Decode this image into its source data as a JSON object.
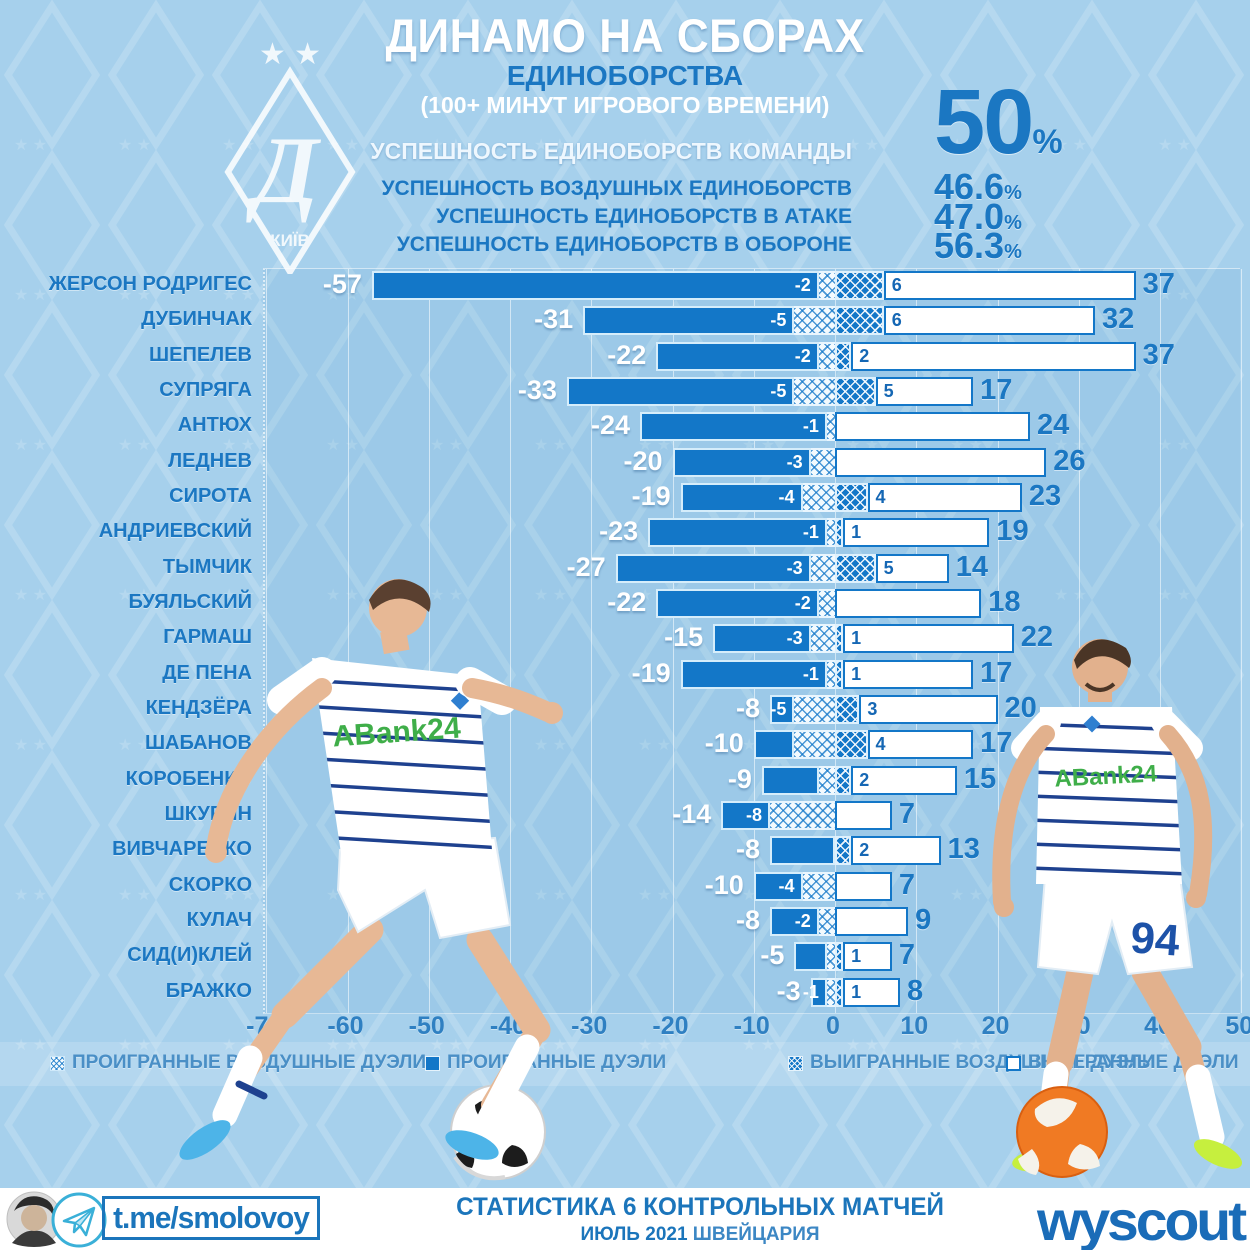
{
  "header": {
    "title": "ДИНАМО НА СБОРАХ",
    "subtitle": "ЕДИНОБОРСТВА",
    "note": "(100+ МИНУТ ИГРОВОГО ВРЕМЕНИ)",
    "stats": [
      {
        "label": "УСПЕШНОСТЬ ЕДИНОБОРСТВ КОМАНДЫ",
        "value": "50",
        "unit": "%"
      },
      {
        "label": "УСПЕШНОСТЬ ВОЗДУШНЫХ ЕДИНОБОРСТВ",
        "value": "46.6",
        "unit": "%"
      },
      {
        "label": "УСПЕШНОСТЬ ЕДИНОБОРСТВ В АТАКЕ",
        "value": "47.0",
        "unit": "%"
      },
      {
        "label": "УСПЕШНОСТЬ ЕДИНОБОРСТВ В ОБОРОНЕ",
        "value": "56.3",
        "unit": "%"
      }
    ]
  },
  "logo": {
    "stars": "★ ★",
    "letter": "Д",
    "city": "КИЇВ"
  },
  "colors": {
    "accent": "#1b77c2",
    "bar": "#1377c8",
    "background": "#a6d0ec",
    "stripe": "#1e418f",
    "sponsor_green": "#3fae49",
    "boot_aqua": "#4db4e8",
    "boot_volt": "#c6ef3e",
    "ball_orange": "#f07a23"
  },
  "chart_data": {
    "type": "bar",
    "orientation": "horizontal-diverging-stacked",
    "title": "ЕДИНОБОРСТВА (100+ МИНУТ ИГРОВОГО ВРЕМЕНИ)",
    "xlim": [
      -70,
      50
    ],
    "x_ticks": [
      -70,
      -60,
      -50,
      -40,
      -30,
      -20,
      -10,
      0,
      10,
      20,
      30,
      40,
      50
    ],
    "grid": true,
    "segments": [
      "lost_total",
      "lost_aerial",
      "won_aerial",
      "won_total"
    ],
    "players": [
      {
        "name": "ЖЕРСОН РОДРИГЕС",
        "lt": -57,
        "la": -2,
        "wa": 6,
        "wt": 37,
        "la_label": true
      },
      {
        "name": "ДУБИНЧАК",
        "lt": -31,
        "la": -5,
        "wa": 6,
        "wt": 32,
        "la_label": true
      },
      {
        "name": "ШЕПЕЛЕВ",
        "lt": -22,
        "la": -2,
        "wa": 2,
        "wt": 37,
        "la_label": true
      },
      {
        "name": "СУПРЯГА",
        "lt": -33,
        "la": -5,
        "wa": 5,
        "wt": 17,
        "la_label": true
      },
      {
        "name": "АНТЮХ",
        "lt": -24,
        "la": -1,
        "wa": 0,
        "wt": 24,
        "la_label": true
      },
      {
        "name": "ЛЕДНЕВ",
        "lt": -20,
        "la": -3,
        "wa": 0,
        "wt": 26,
        "la_label": true
      },
      {
        "name": "СИРОТА",
        "lt": -19,
        "la": -4,
        "wa": 4,
        "wt": 23,
        "la_label": true
      },
      {
        "name": "АНДРИЕВСКИЙ",
        "lt": -23,
        "la": -1,
        "wa": 1,
        "wt": 19,
        "la_label": true
      },
      {
        "name": "ТЫМЧИК",
        "lt": -27,
        "la": -3,
        "wa": 5,
        "wt": 14,
        "la_label": true
      },
      {
        "name": "БУЯЛЬСКИЙ",
        "lt": -22,
        "la": -2,
        "wa": 0,
        "wt": 18,
        "la_label": true
      },
      {
        "name": "ГАРМАШ",
        "lt": -15,
        "la": -3,
        "wa": 1,
        "wt": 22,
        "la_label": true
      },
      {
        "name": "ДЕ ПЕНА",
        "lt": -19,
        "la": -1,
        "wa": 1,
        "wt": 17,
        "la_label": true
      },
      {
        "name": "КЕНДЗЁРА",
        "lt": -8,
        "la": -5,
        "wa": 3,
        "wt": 20,
        "la_label": true
      },
      {
        "name": "ШАБАНОВ",
        "lt": -10,
        "la": -5,
        "wa": 4,
        "wt": 17,
        "la_label": false
      },
      {
        "name": "КОРОБЕНКО",
        "lt": -9,
        "la": -2,
        "wa": 2,
        "wt": 15,
        "la_label": false
      },
      {
        "name": "ШКУРИН",
        "lt": -14,
        "la": -8,
        "wa": 0,
        "wt": 7,
        "la_label": true
      },
      {
        "name": "ВИВЧАРЕНКО",
        "lt": -8,
        "la": 0,
        "wa": 2,
        "wt": 13,
        "la_label": false
      },
      {
        "name": "СКОРКО",
        "lt": -10,
        "la": -4,
        "wa": 0,
        "wt": 7,
        "la_label": true
      },
      {
        "name": "КУЛАЧ",
        "lt": -8,
        "la": -2,
        "wa": 0,
        "wt": 9,
        "la_label": true
      },
      {
        "name": "СИД(И)КЛЕЙ",
        "lt": -5,
        "la": -1,
        "wa": 1,
        "wt": 7,
        "la_label": false
      },
      {
        "name": "БРАЖКО",
        "lt": -3,
        "la": -1,
        "wa": 1,
        "wt": 8,
        "la_label": true
      }
    ]
  },
  "legend": {
    "items": [
      {
        "label": "ПРОИГРАННЫЕ ВОЗДУШНЫЕ ДУЭЛИ",
        "style": "hl"
      },
      {
        "label": "ПРОИГРАННЫЕ ДУЭЛИ",
        "style": "solid"
      },
      {
        "label": "ВЫИГРАННЫЕ ВОЗДУШНЫЕ ДУЭЛИ",
        "style": "hd"
      },
      {
        "label": "ВЫИГРАННЫЕ ДУЭЛИ",
        "style": "outline"
      }
    ]
  },
  "jerseys": {
    "sponsor": "ABank24",
    "number": "94"
  },
  "footer": {
    "channel": "t.me/smolovoy",
    "line1": "СТАТИСТИКА 6 КОНТРОЛЬНЫХ МАТЧЕЙ",
    "line2_bold": "ИЮЛЬ 2021",
    "line2_rest": "ШВЕЙЦАРИЯ",
    "brand": "wyscout"
  }
}
